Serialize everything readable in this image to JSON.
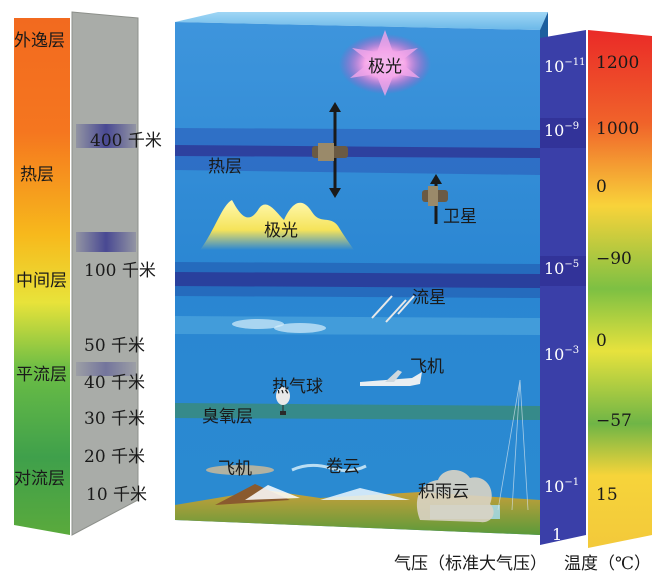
{
  "layers": {
    "exosphere": "外逸层",
    "thermosphere": "热层",
    "mesosphere": "中间层",
    "stratosphere": "平流层",
    "troposphere": "对流层"
  },
  "altitudes": [
    "400 千米",
    "100 千米",
    "50 千米",
    "40 千米",
    "30 千米",
    "20 千米",
    "10 千米"
  ],
  "features": {
    "aurora_top": "极光",
    "thermosphere_box": "热层",
    "aurora_mid": "极光",
    "satellite": "卫星",
    "meteor": "流星",
    "airplane_high": "飞机",
    "balloon": "热气球",
    "ozone": "臭氧层",
    "airplane_low": "飞机",
    "cirrus": "卷云",
    "cumulonimbus": "积雨云"
  },
  "pressure": {
    "labels": [
      "10-11",
      "10-9",
      "10-5",
      "10-3",
      "10-1",
      "1"
    ],
    "exponents": [
      {
        "base": "10",
        "exp": "−11"
      },
      {
        "base": "10",
        "exp": "−9"
      },
      {
        "base": "10",
        "exp": "−5"
      },
      {
        "base": "10",
        "exp": "−3"
      },
      {
        "base": "10",
        "exp": "−1"
      },
      {
        "base": "1",
        "exp": ""
      }
    ]
  },
  "temperature": [
    "1200",
    "1000",
    "0",
    "−90",
    "0",
    "−57",
    "15"
  ],
  "footer": {
    "pressure_caption": "气压（标准大气压）",
    "temp_caption": "温度（℃）"
  },
  "colors": {
    "box_top": "#3b8fd8",
    "box_bottom": "#1f77c9",
    "pressure_bar": "#3a3fa8",
    "accent_purple": "#4a2a9a"
  }
}
